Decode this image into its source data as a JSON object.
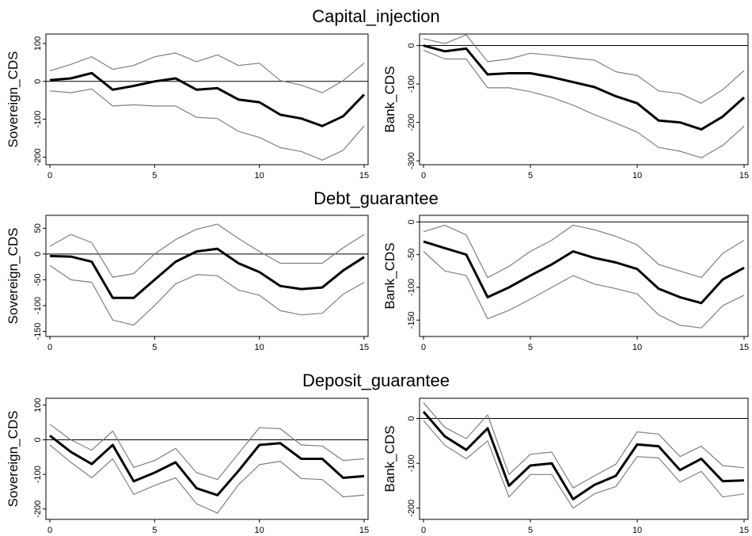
{
  "chart_data": [
    {
      "type": "line",
      "title": "Capital_injection",
      "panels": [
        {
          "ylabel": "Sovereign_CDS",
          "xlim": [
            0,
            15
          ],
          "ylim": [
            -220,
            125
          ],
          "xticks": [
            0,
            5,
            10,
            15
          ],
          "yticks": [
            -200,
            -100,
            0,
            100
          ],
          "x": [
            0,
            1,
            2,
            3,
            4,
            5,
            6,
            7,
            8,
            9,
            10,
            11,
            12,
            13,
            14,
            15
          ],
          "series": [
            {
              "role": "estimate",
              "values": [
                3,
                8,
                22,
                -22,
                -12,
                0,
                8,
                -22,
                -18,
                -48,
                -55,
                -88,
                -98,
                -118,
                -92,
                -35
              ]
            },
            {
              "role": "upper",
              "values": [
                28,
                45,
                65,
                32,
                42,
                65,
                75,
                52,
                70,
                42,
                48,
                2,
                -10,
                -30,
                2,
                48
              ]
            },
            {
              "role": "lower",
              "values": [
                -25,
                -30,
                -20,
                -65,
                -62,
                -65,
                -65,
                -95,
                -98,
                -132,
                -148,
                -175,
                -185,
                -208,
                -182,
                -118
              ]
            }
          ]
        },
        {
          "ylabel": "Bank_CDS",
          "xlim": [
            0,
            15
          ],
          "ylim": [
            -310,
            30
          ],
          "xticks": [
            0,
            5,
            10,
            15
          ],
          "yticks": [
            -300,
            -200,
            -100,
            0
          ],
          "x": [
            0,
            1,
            2,
            3,
            4,
            5,
            6,
            7,
            8,
            9,
            10,
            11,
            12,
            13,
            14,
            15
          ],
          "series": [
            {
              "role": "estimate",
              "values": [
                0,
                -15,
                -8,
                -75,
                -72,
                -72,
                -82,
                -95,
                -108,
                -132,
                -150,
                -195,
                -200,
                -218,
                -185,
                -135
              ]
            },
            {
              "role": "upper",
              "values": [
                18,
                5,
                28,
                -42,
                -35,
                -20,
                -25,
                -32,
                -38,
                -68,
                -78,
                -118,
                -125,
                -150,
                -115,
                -65
              ]
            },
            {
              "role": "lower",
              "values": [
                -12,
                -35,
                -35,
                -110,
                -110,
                -120,
                -135,
                -155,
                -180,
                -202,
                -225,
                -265,
                -275,
                -292,
                -260,
                -210
              ]
            }
          ]
        }
      ]
    },
    {
      "type": "line",
      "title": "Debt_guarantee",
      "panels": [
        {
          "ylabel": "Sovereign_CDS",
          "xlim": [
            0,
            15
          ],
          "ylim": [
            -160,
            75
          ],
          "xticks": [
            0,
            5,
            10,
            15
          ],
          "yticks": [
            -150,
            -100,
            -50,
            0,
            50
          ],
          "x": [
            0,
            1,
            2,
            3,
            4,
            5,
            6,
            7,
            8,
            9,
            10,
            11,
            12,
            13,
            14,
            15
          ],
          "series": [
            {
              "role": "estimate",
              "values": [
                -4,
                -5,
                -15,
                -85,
                -85,
                -50,
                -15,
                5,
                10,
                -18,
                -35,
                -62,
                -68,
                -65,
                -32,
                -6
              ]
            },
            {
              "role": "upper",
              "values": [
                15,
                38,
                22,
                -45,
                -38,
                0,
                28,
                48,
                58,
                30,
                5,
                -18,
                -18,
                -18,
                12,
                38
              ]
            },
            {
              "role": "lower",
              "values": [
                -22,
                -50,
                -55,
                -128,
                -138,
                -100,
                -58,
                -40,
                -42,
                -70,
                -80,
                -110,
                -118,
                -115,
                -78,
                -55
              ]
            }
          ]
        },
        {
          "ylabel": "Bank_CDS",
          "xlim": [
            0,
            15
          ],
          "ylim": [
            -175,
            10
          ],
          "xticks": [
            0,
            5,
            10,
            15
          ],
          "yticks": [
            -150,
            -100,
            -50,
            0
          ],
          "x": [
            0,
            1,
            2,
            3,
            4,
            5,
            6,
            7,
            8,
            9,
            10,
            11,
            12,
            13,
            14,
            15
          ],
          "series": [
            {
              "role": "estimate",
              "values": [
                -30,
                -40,
                -50,
                -115,
                -100,
                -82,
                -65,
                -45,
                -55,
                -62,
                -72,
                -102,
                -115,
                -124,
                -88,
                -70
              ]
            },
            {
              "role": "upper",
              "values": [
                -15,
                -5,
                -20,
                -85,
                -68,
                -45,
                -28,
                -5,
                -12,
                -22,
                -35,
                -65,
                -75,
                -85,
                -48,
                -28
              ]
            },
            {
              "role": "lower",
              "values": [
                -45,
                -75,
                -82,
                -148,
                -135,
                -118,
                -100,
                -82,
                -95,
                -102,
                -110,
                -142,
                -158,
                -162,
                -128,
                -112
              ]
            }
          ]
        }
      ]
    },
    {
      "type": "line",
      "title": "Deposit_guarantee",
      "panels": [
        {
          "ylabel": "Sovereign_CDS",
          "xlim": [
            0,
            15
          ],
          "ylim": [
            -230,
            120
          ],
          "xticks": [
            0,
            5,
            10,
            15
          ],
          "yticks": [
            -200,
            -100,
            0,
            100
          ],
          "x": [
            0,
            1,
            2,
            3,
            4,
            5,
            6,
            7,
            8,
            9,
            10,
            11,
            12,
            13,
            14,
            15
          ],
          "series": [
            {
              "role": "estimate",
              "values": [
                12,
                -35,
                -70,
                -15,
                -120,
                -95,
                -65,
                -140,
                -160,
                -90,
                -15,
                -10,
                -55,
                -55,
                -110,
                -105
              ]
            },
            {
              "role": "upper",
              "values": [
                45,
                0,
                -30,
                25,
                -80,
                -60,
                -25,
                -95,
                -115,
                -40,
                35,
                32,
                -15,
                -18,
                -60,
                -55
              ]
            },
            {
              "role": "lower",
              "values": [
                -15,
                -65,
                -110,
                -55,
                -158,
                -132,
                -110,
                -185,
                -212,
                -130,
                -72,
                -62,
                -112,
                -115,
                -165,
                -160
              ]
            }
          ]
        },
        {
          "ylabel": "Bank_CDS",
          "xlim": [
            0,
            15
          ],
          "ylim": [
            -225,
            45
          ],
          "xticks": [
            0,
            5,
            10,
            15
          ],
          "yticks": [
            -200,
            -100,
            0
          ],
          "x": [
            0,
            1,
            2,
            3,
            4,
            5,
            6,
            7,
            8,
            9,
            10,
            11,
            12,
            13,
            14,
            15
          ],
          "series": [
            {
              "role": "estimate",
              "values": [
                15,
                -40,
                -70,
                -22,
                -150,
                -105,
                -100,
                -180,
                -148,
                -128,
                -58,
                -62,
                -115,
                -90,
                -140,
                -138
              ]
            },
            {
              "role": "upper",
              "values": [
                35,
                -20,
                -45,
                8,
                -125,
                -80,
                -75,
                -155,
                -128,
                -102,
                -30,
                -35,
                -85,
                -62,
                -105,
                -110
              ]
            },
            {
              "role": "lower",
              "values": [
                -5,
                -60,
                -90,
                -50,
                -175,
                -125,
                -125,
                -200,
                -168,
                -152,
                -85,
                -88,
                -142,
                -118,
                -175,
                -168
              ]
            }
          ]
        }
      ]
    }
  ],
  "colors": {
    "estimate": "#000000",
    "band": "#7f7f7f",
    "axis": "#000000",
    "zero_line": "#000000"
  }
}
